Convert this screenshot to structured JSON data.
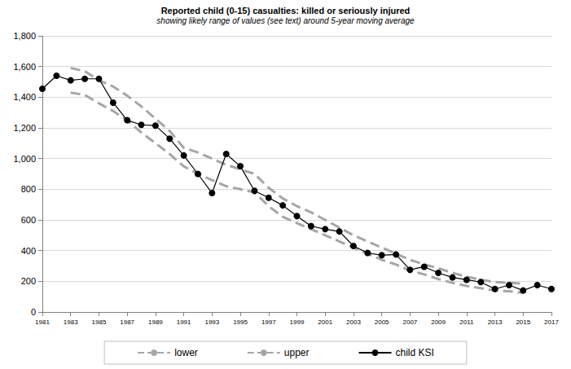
{
  "chart_data": {
    "type": "line",
    "title": "Reported child (0-15) casualties: killed or seriously injured",
    "subtitle": "showing likely range of values (see text) around 5-year moving average",
    "x": [
      1981,
      1982,
      1983,
      1984,
      1985,
      1986,
      1987,
      1988,
      1989,
      1990,
      1991,
      1992,
      1993,
      1994,
      1995,
      1996,
      1997,
      1998,
      1999,
      2000,
      2001,
      2002,
      2003,
      2004,
      2005,
      2006,
      2007,
      2008,
      2009,
      2010,
      2011,
      2012,
      2013,
      2014,
      2015,
      2016,
      2017
    ],
    "series": [
      {
        "name": "lower",
        "color": "#a6a6a6",
        "line_style": "dashed",
        "marker": "none",
        "values": [
          null,
          null,
          1430,
          1415,
          1360,
          1310,
          1250,
          1170,
          1100,
          1030,
          950,
          900,
          860,
          820,
          800,
          780,
          690,
          620,
          580,
          540,
          500,
          460,
          420,
          380,
          340,
          310,
          270,
          245,
          215,
          190,
          170,
          155,
          140,
          135,
          125,
          null,
          null
        ]
      },
      {
        "name": "upper",
        "color": "#a6a6a6",
        "line_style": "dashed",
        "marker": "none",
        "values": [
          null,
          null,
          1590,
          1570,
          1510,
          1470,
          1410,
          1340,
          1260,
          1180,
          1070,
          1040,
          1000,
          960,
          930,
          900,
          810,
          740,
          690,
          650,
          600,
          550,
          500,
          460,
          420,
          380,
          340,
          310,
          285,
          255,
          230,
          210,
          195,
          190,
          185,
          null,
          null
        ]
      },
      {
        "name": "child KSI",
        "color": "#000000",
        "line_style": "solid",
        "marker": "circle",
        "values": [
          1455,
          1540,
          1510,
          1520,
          1520,
          1365,
          1250,
          1220,
          1215,
          1130,
          1020,
          900,
          775,
          1030,
          950,
          790,
          745,
          695,
          625,
          560,
          540,
          525,
          430,
          385,
          370,
          375,
          275,
          295,
          255,
          225,
          210,
          195,
          150,
          175,
          140,
          175,
          150
        ]
      }
    ],
    "xlim": [
      1981,
      2017
    ],
    "xticks": [
      1981,
      1983,
      1985,
      1987,
      1989,
      1991,
      1993,
      1995,
      1997,
      1999,
      2001,
      2003,
      2005,
      2007,
      2009,
      2011,
      2013,
      2015,
      2017
    ],
    "ylim": [
      0,
      1800
    ],
    "yticks": [
      0,
      200,
      400,
      600,
      800,
      {
        "value": 1000,
        "label": "1,000"
      },
      {
        "value": 1200,
        "label": "1,200"
      },
      {
        "value": 1400,
        "label": "1,400"
      },
      {
        "value": 1600,
        "label": "1,600"
      },
      {
        "value": 1800,
        "label": "1,800"
      }
    ],
    "grid": true,
    "legend": "bottom"
  }
}
